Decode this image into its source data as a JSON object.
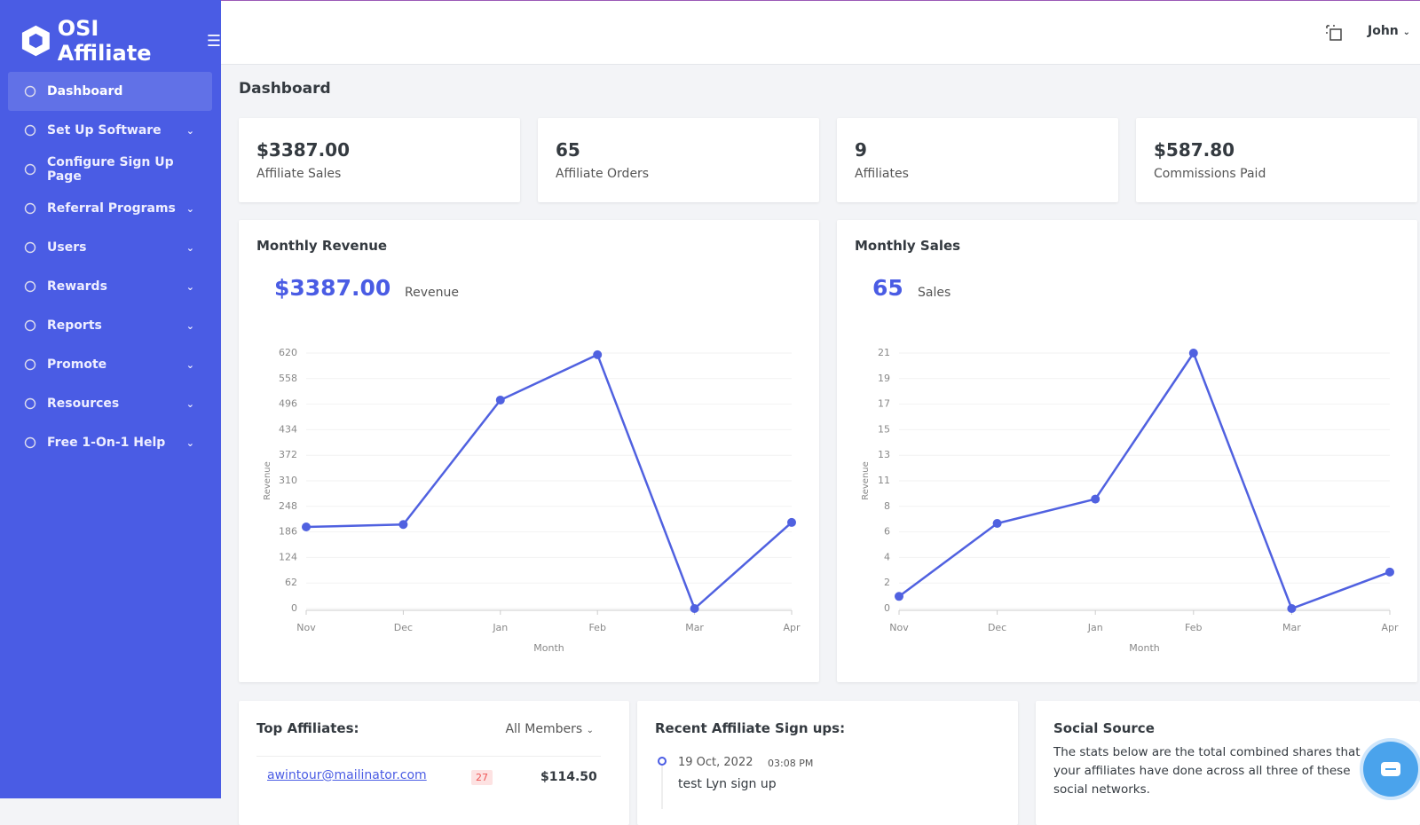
{
  "brand": "OSI Affiliate",
  "nav": [
    "Dashboard",
    "Set Up Software",
    "Configure Sign Up Page",
    "Referral Programs",
    "Users",
    "Rewards",
    "Reports",
    "Promote",
    "Resources",
    "Free 1-On-1 Help"
  ],
  "header": {
    "user": "John"
  },
  "page_title": "Dashboard",
  "stats": [
    {
      "value": "$3387.00",
      "label": "Affiliate Sales"
    },
    {
      "value": "65",
      "label": "Affiliate Orders"
    },
    {
      "value": "9",
      "label": "Affiliates"
    },
    {
      "value": "$587.80",
      "label": "Commissions Paid"
    }
  ],
  "charts": [
    {
      "type": "line",
      "title": "Monthly Revenue",
      "total": "$3387.00",
      "total_label": "Revenue",
      "y_label": "Revenue",
      "x_label": "Month",
      "categories": [
        "Nov",
        "Dec",
        "Jan",
        "Feb",
        "Mar",
        "Apr"
      ],
      "values": [
        198,
        204,
        506,
        616,
        0,
        209
      ],
      "color": "#5061e0",
      "ylim": [
        0,
        620
      ],
      "yticks": [
        0,
        62,
        124,
        186,
        248,
        310,
        372,
        434,
        496,
        558,
        620
      ],
      "grid": true
    },
    {
      "type": "line",
      "title": "Monthly Sales",
      "total": "65",
      "total_label": "Sales",
      "y_label": "Revenue",
      "x_label": "Month",
      "categories": [
        "Nov",
        "Dec",
        "Jan",
        "Feb",
        "Mar",
        "Apr"
      ],
      "values": [
        1,
        7,
        9,
        21,
        0,
        3
      ],
      "color": "#5061e0",
      "ylim": [
        0,
        21
      ],
      "yticks": [
        0,
        {
          "value": 2.1,
          "label": "2"
        },
        {
          "value": 4.2,
          "label": "4"
        },
        {
          "value": 6.3,
          "label": "6"
        },
        {
          "value": 8.4,
          "label": "8"
        },
        {
          "value": 10.5,
          "label": "11"
        },
        {
          "value": 12.6,
          "label": "13"
        },
        {
          "value": 14.7,
          "label": "15"
        },
        {
          "value": 16.8,
          "label": "17"
        },
        {
          "value": 18.9,
          "label": "19"
        },
        21
      ],
      "grid": true
    }
  ],
  "top_affiliates": {
    "title": "Top Affiliates:",
    "filter": "All Members",
    "rows": [
      {
        "email": "awintour@mailinator.com",
        "count": "27",
        "amount": "$114.50"
      }
    ]
  },
  "signups": {
    "title": "Recent Affiliate Sign ups:",
    "items": [
      {
        "date": "19 Oct, 2022",
        "time": "03:08 PM",
        "text": "test Lyn sign up"
      }
    ]
  },
  "social": {
    "title": "Social Source",
    "text": "The stats below are the total combined shares that your affiliates have done across all three of these social networks."
  }
}
